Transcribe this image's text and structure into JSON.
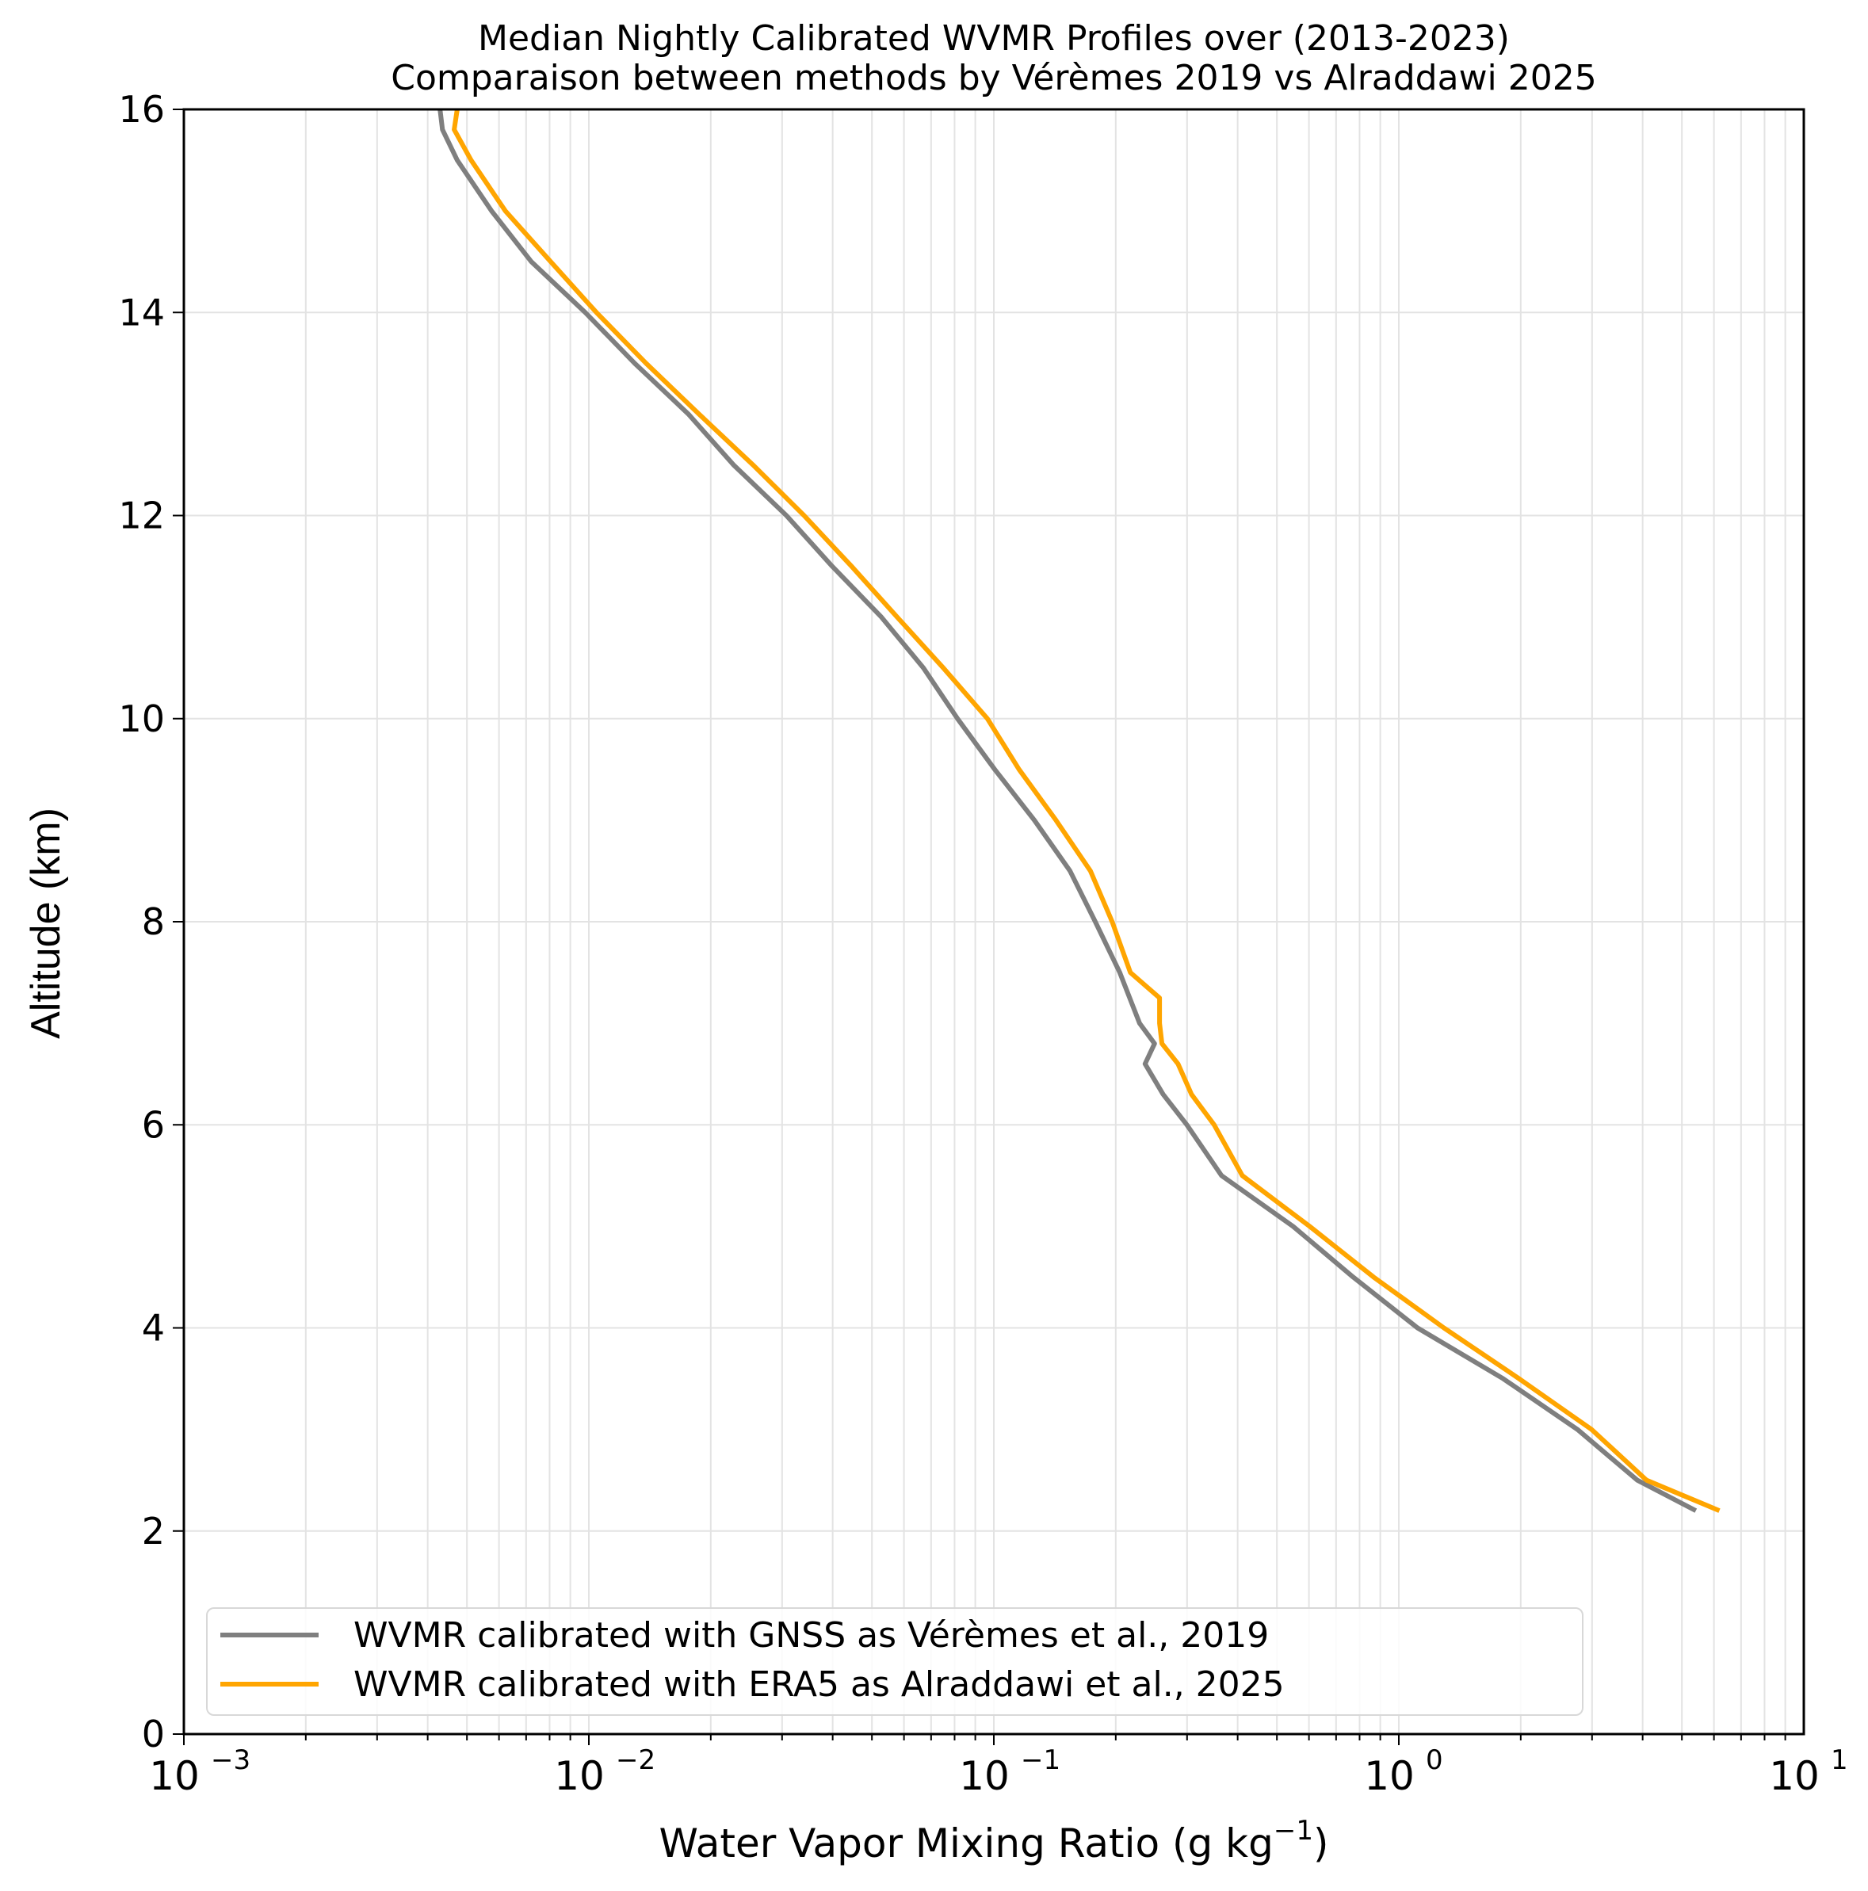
{
  "chart_data": {
    "type": "line",
    "title": "Median Nightly Calibrated WVMR Profiles over (2013-2023)",
    "subtitle": "Comparaison between methods by Vérèmes 2019 vs Alraddawi 2025",
    "xlabel": "Water Vapor Mixing Ratio (g kg⁻¹)",
    "xlabel_base": "Water Vapor Mixing Ratio (g kg",
    "xlabel_sup": "−1",
    "xlabel_tail": ")",
    "ylabel": "Altitude (km)",
    "xscale": "log",
    "xlim": [
      0.001,
      10
    ],
    "ylim": [
      0,
      16
    ],
    "xticks": [
      {
        "value": 0.001,
        "base": "10",
        "exp": "−3"
      },
      {
        "value": 0.01,
        "base": "10",
        "exp": "−2"
      },
      {
        "value": 0.1,
        "base": "10",
        "exp": "−1"
      },
      {
        "value": 1,
        "base": "10",
        "exp": "0"
      },
      {
        "value": 10,
        "base": "10",
        "exp": "1"
      }
    ],
    "yticks": [
      0,
      2,
      4,
      6,
      8,
      10,
      12,
      14,
      16
    ],
    "grid": true,
    "legend_position": "lower left",
    "series": [
      {
        "name": "WVMR calibrated with GNSS as Vérèmes et al., 2019",
        "color": "#7f7f7f",
        "points": [
          [
            0.00429,
            16.0
          ],
          [
            0.00435,
            15.8
          ],
          [
            0.00473,
            15.5
          ],
          [
            0.00575,
            15.0
          ],
          [
            0.00721,
            14.5
          ],
          [
            0.0098,
            14.0
          ],
          [
            0.01297,
            13.5
          ],
          [
            0.0176,
            13.0
          ],
          [
            0.02275,
            12.5
          ],
          [
            0.03075,
            12.0
          ],
          [
            0.0399,
            11.5
          ],
          [
            0.05277,
            11.0
          ],
          [
            0.067,
            10.5
          ],
          [
            0.08135,
            10.0
          ],
          [
            0.1005,
            9.5
          ],
          [
            0.1259,
            9.0
          ],
          [
            0.1542,
            8.5
          ],
          [
            0.178,
            8.0
          ],
          [
            0.2046,
            7.5
          ],
          [
            0.229,
            7.0
          ],
          [
            0.2494,
            6.8
          ],
          [
            0.2363,
            6.6
          ],
          [
            0.2618,
            6.3
          ],
          [
            0.2997,
            6.0
          ],
          [
            0.365,
            5.5
          ],
          [
            0.5483,
            5.0
          ],
          [
            0.7713,
            4.5
          ],
          [
            1.112,
            4.0
          ],
          [
            1.81,
            3.5
          ],
          [
            2.76,
            3.0
          ],
          [
            3.882,
            2.5
          ],
          [
            5.414,
            2.2
          ]
        ]
      },
      {
        "name": "WVMR calibrated with ERA5 as Alraddawi et al., 2025",
        "color": "#ffa500",
        "points": [
          [
            0.00473,
            16.0
          ],
          [
            0.00465,
            15.8
          ],
          [
            0.00512,
            15.5
          ],
          [
            0.00622,
            15.0
          ],
          [
            0.00805,
            14.5
          ],
          [
            0.01044,
            14.0
          ],
          [
            0.01384,
            13.5
          ],
          [
            0.0187,
            13.0
          ],
          [
            0.0254,
            12.5
          ],
          [
            0.034,
            12.0
          ],
          [
            0.04453,
            11.5
          ],
          [
            0.0577,
            11.0
          ],
          [
            0.075,
            10.5
          ],
          [
            0.09642,
            10.0
          ],
          [
            0.1154,
            9.5
          ],
          [
            0.1424,
            9.0
          ],
          [
            0.1732,
            8.5
          ],
          [
            0.196,
            8.0
          ],
          [
            0.2174,
            7.5
          ],
          [
            0.2566,
            7.25
          ],
          [
            0.2566,
            7.0
          ],
          [
            0.26,
            6.8
          ],
          [
            0.285,
            6.6
          ],
          [
            0.3076,
            6.3
          ],
          [
            0.35,
            6.0
          ],
          [
            0.4106,
            5.5
          ],
          [
            0.6023,
            5.0
          ],
          [
            0.8664,
            4.5
          ],
          [
            1.292,
            4.0
          ],
          [
            1.982,
            3.5
          ],
          [
            2.991,
            3.0
          ],
          [
            4.091,
            2.5
          ],
          [
            6.188,
            2.2
          ]
        ]
      }
    ]
  }
}
